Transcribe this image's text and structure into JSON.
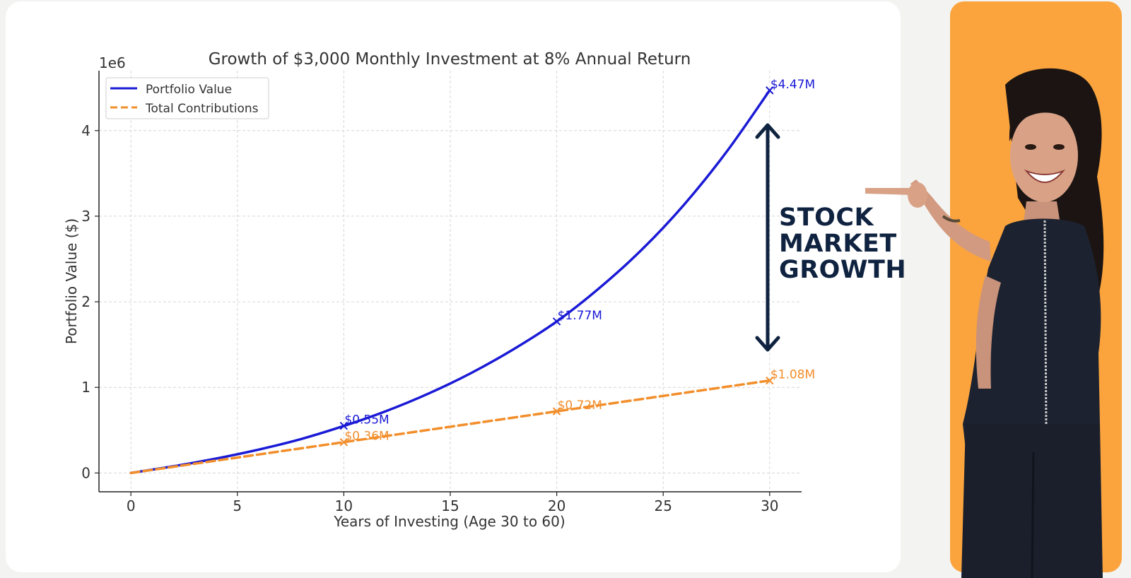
{
  "chart_data": {
    "type": "line",
    "title": "Growth of $3,000 Monthly Investment at 8% Annual Return",
    "xlabel": "Years of Investing (Age 30 to 60)",
    "ylabel": "Portfolio Value ($)",
    "y_offset_label": "1e6",
    "xlim": [
      -1.5,
      31.5
    ],
    "ylim": [
      -0.22,
      4.7
    ],
    "x_ticks": [
      0,
      5,
      10,
      15,
      20,
      25,
      30
    ],
    "y_ticks": [
      0,
      1,
      2,
      3,
      4
    ],
    "grid": true,
    "legend_position": "top-left",
    "series": [
      {
        "name": "Portfolio Value",
        "color": "#1a1ad6",
        "style": "solid",
        "x": [
          0,
          2,
          4,
          6,
          8,
          10,
          12,
          14,
          16,
          18,
          20,
          22,
          24,
          26,
          28,
          30
        ],
        "y": [
          0,
          0.078,
          0.168,
          0.273,
          0.397,
          0.549,
          0.724,
          0.93,
          1.17,
          1.45,
          1.77,
          2.16,
          2.61,
          3.14,
          3.76,
          4.47
        ]
      },
      {
        "name": "Total Contributions",
        "color": "#f28e2b",
        "style": "dashed",
        "x": [
          0,
          30
        ],
        "y": [
          0,
          1.08
        ]
      }
    ],
    "markers": [
      {
        "series": 0,
        "x": 10,
        "y": 0.55,
        "label": "$0.55M"
      },
      {
        "series": 0,
        "x": 20,
        "y": 1.77,
        "label": "$1.77M"
      },
      {
        "series": 0,
        "x": 30,
        "y": 4.47,
        "label": "$4.47M"
      },
      {
        "series": 1,
        "x": 10,
        "y": 0.36,
        "label": "$0.36M"
      },
      {
        "series": 1,
        "x": 20,
        "y": 0.72,
        "label": "$0.72M"
      },
      {
        "series": 1,
        "x": 30,
        "y": 1.08,
        "label": "$1.08M"
      }
    ]
  },
  "annotation": {
    "lines": [
      "STOCK",
      "MARKET",
      "GROWTH"
    ],
    "color": "#0f2340"
  },
  "promo": {
    "panel_color": "#fba43e"
  }
}
